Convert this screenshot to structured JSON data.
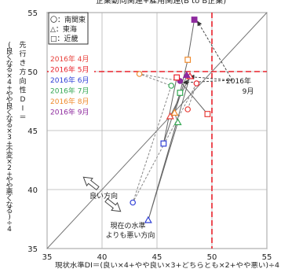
{
  "chart_data": {
    "type": "scatter",
    "title": "企業動向関連+雇用関連(B to B企業)",
    "xlabel": "現状水準DI＝(良い×4+やや良い×3+どちらとも×2+やや悪い)÷4",
    "ylabel": "先行き方向性DI＝(良くなる×4+やや良くなる×3+不変×2+やや悪くなる)÷4",
    "xlim": [
      35,
      55
    ],
    "ylim": [
      35,
      55
    ],
    "xticks": [
      "35",
      "40",
      "45",
      "50",
      "55"
    ],
    "yticks": [
      "35",
      "40",
      "45",
      "50",
      "55"
    ],
    "grid": true,
    "diagonal_line": "y = x",
    "reference_lines": {
      "x": 50,
      "y": 50,
      "color": "#e8202a"
    },
    "marker_legend": [
      {
        "marker": "circle",
        "label": "〇：南関東"
      },
      {
        "marker": "triangle",
        "label": "△：東海"
      },
      {
        "marker": "square",
        "label": "□：近畿"
      }
    ],
    "month_legend": [
      {
        "label": "2016年 4月",
        "color": "#e83e38"
      },
      {
        "label": "2016年 5月",
        "color": "#e8202a"
      },
      {
        "label": "2016年 6月",
        "color": "#2f3fd6"
      },
      {
        "label": "2016年 7月",
        "color": "#34a853"
      },
      {
        "label": "2016年 8月",
        "color": "#ef8a2c"
      },
      {
        "label": "2016年 9月",
        "color": "#8e2a9e"
      }
    ],
    "series": [
      {
        "name": "南関東",
        "marker": "circle",
        "line": "dashed",
        "x": [
          47.8,
          48.6,
          42.8,
          46.3,
          43.4,
          47.1
        ],
        "y": [
          46.8,
          49.0,
          38.9,
          48.8,
          49.8,
          49.2
        ],
        "colors": [
          "#e83e38",
          "#e8202a",
          "#2f3fd6",
          "#34a853",
          "#ef8a2c",
          "#8e2a9e"
        ]
      },
      {
        "name": "東海",
        "marker": "triangle",
        "line": "solid",
        "x": [
          46.2,
          48.0,
          44.2,
          46.9,
          46.6,
          47.7
        ],
        "y": [
          46.2,
          49.6,
          37.4,
          45.7,
          46.5,
          49.7
        ],
        "colors": [
          "#e83e38",
          "#e8202a",
          "#2f3fd6",
          "#34a853",
          "#ef8a2c",
          "#8e2a9e"
        ]
      },
      {
        "name": "近畿",
        "marker": "square",
        "line": "solid",
        "x": [
          49.6,
          46.8,
          45.6,
          47.1,
          47.8,
          48.4
        ],
        "y": [
          46.4,
          49.5,
          43.9,
          48.2,
          51.0,
          54.4
        ],
        "colors": [
          "#e83e38",
          "#e8202a",
          "#2f3fd6",
          "#34a853",
          "#ef8a2c",
          "#8e2a9e"
        ]
      }
    ],
    "annotations": {
      "latest_month": "2016年\n9月",
      "better_direction": "良い方向",
      "worse_than_now": "現在の水準\nよりも悪い方向"
    }
  }
}
